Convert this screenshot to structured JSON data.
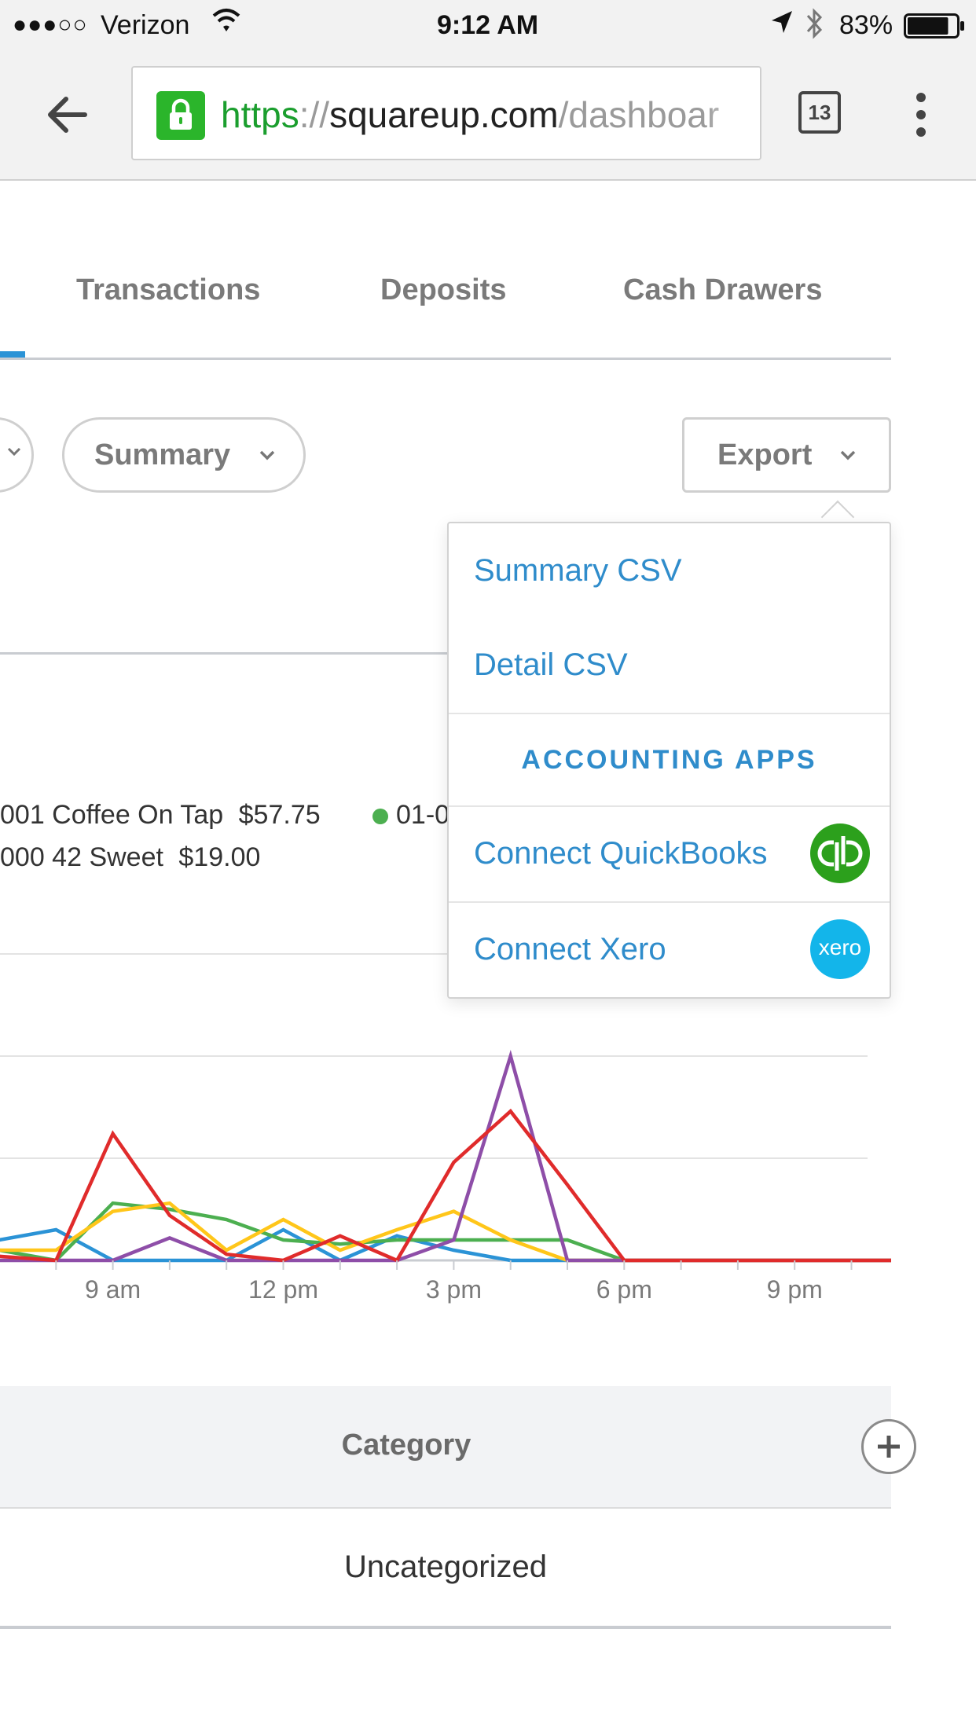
{
  "status_bar": {
    "carrier": "Verizon",
    "signal_dots": "●●●○○",
    "time": "9:12 AM",
    "battery": "83%",
    "battery_level": 0.83
  },
  "browser": {
    "url_scheme": "https",
    "url_sep": "://",
    "url_host": "squareup.com",
    "url_path": "/dashboar",
    "tab_count": "13"
  },
  "tabs": [
    {
      "label": "Transactions"
    },
    {
      "label": "Deposits"
    },
    {
      "label": "Cash Drawers"
    }
  ],
  "filters": {
    "summary_label": "Summary",
    "export_label": "Export"
  },
  "export_menu": {
    "summary_csv": "Summary CSV",
    "detail_csv": "Detail CSV",
    "section_header": "ACCOUNTING APPS",
    "quickbooks": "Connect QuickBooks",
    "xero": "Connect Xero",
    "xero_logo_text": "xero"
  },
  "legend": {
    "row1_text": "001 Coffee On Tap",
    "row1_value": "$57.75",
    "row1b_text": "01-0",
    "row2_text": "000 42 Sweet",
    "row2_value": "$19.00"
  },
  "chart_data": {
    "type": "line",
    "x_tick_labels": [
      "9 am",
      "12 pm",
      "3 pm",
      "6 pm",
      "9 pm"
    ],
    "x": [
      7,
      8,
      9,
      10,
      11,
      12,
      13,
      14,
      15,
      16,
      17,
      18,
      19,
      20,
      21,
      22,
      23
    ],
    "series_colors": [
      "#2b93d6",
      "#4caf50",
      "#ffc61a",
      "#8e4ea8",
      "#e02b2b"
    ],
    "series": [
      {
        "color": "#2b93d6",
        "values": [
          0.1,
          0.15,
          0.0,
          0.0,
          0.0,
          0.15,
          0.0,
          0.12,
          0.05,
          0.0,
          0.0,
          0.0,
          0.0,
          0.0,
          0.0,
          0.0,
          0.0
        ]
      },
      {
        "color": "#4caf50",
        "values": [
          0.05,
          0.0,
          0.28,
          0.25,
          0.2,
          0.1,
          0.08,
          0.1,
          0.1,
          0.1,
          0.1,
          0.0,
          0.0,
          0.0,
          0.0,
          0.0,
          0.0
        ]
      },
      {
        "color": "#ffc61a",
        "values": [
          0.05,
          0.05,
          0.24,
          0.28,
          0.05,
          0.2,
          0.05,
          0.15,
          0.24,
          0.1,
          0.0,
          0.0,
          0.0,
          0.0,
          0.0,
          0.0,
          0.0
        ]
      },
      {
        "color": "#8e4ea8",
        "values": [
          0.0,
          0.0,
          0.0,
          0.11,
          0.0,
          0.0,
          0.0,
          0.0,
          0.1,
          1.0,
          0.0,
          0.0,
          0.0,
          0.0,
          0.0,
          0.0,
          0.0
        ]
      },
      {
        "color": "#e02b2b",
        "values": [
          0.02,
          0.0,
          0.62,
          0.22,
          0.03,
          0.0,
          0.12,
          0.0,
          0.48,
          0.73,
          0.37,
          0.0,
          0.0,
          0.0,
          0.0,
          0.0,
          0.0
        ]
      }
    ]
  },
  "category_table": {
    "header": "Category",
    "rows": [
      "Uncategorized"
    ]
  }
}
